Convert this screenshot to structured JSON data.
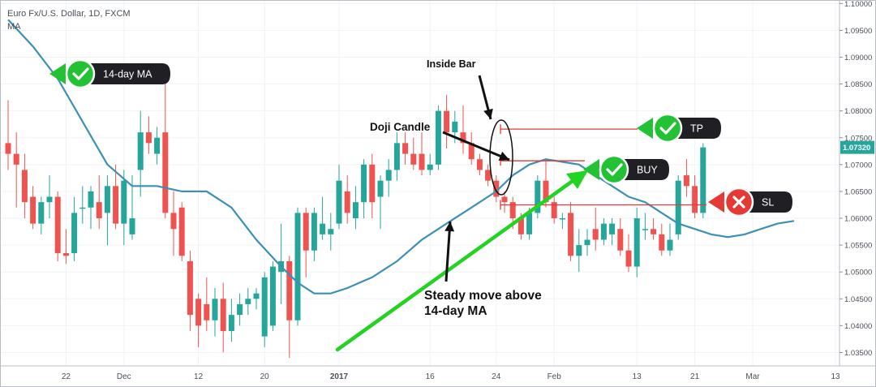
{
  "chart_data": {
    "type": "candlestick",
    "title": "Euro Fx/U.S. Dollar, 1D, FXCM",
    "indicator_label": "MA",
    "y_axis": {
      "position": "right",
      "ylim": [
        1.0325,
        1.1005
      ],
      "ticks": [
        "1.10000",
        "1.09500",
        "1.09000",
        "1.08500",
        "1.08000",
        "1.07500",
        "1.07000",
        "1.06500",
        "1.06000",
        "1.05500",
        "1.05000",
        "1.04500",
        "1.04000",
        "1.03500"
      ],
      "current_price": "1.07320"
    },
    "x_axis": {
      "tick_labels": [
        {
          "index": 7,
          "label": "22"
        },
        {
          "index": 14,
          "label": "Dec"
        },
        {
          "index": 23,
          "label": "12"
        },
        {
          "index": 31,
          "label": "20"
        },
        {
          "index": 40,
          "label": "2017",
          "bold": true
        },
        {
          "index": 51,
          "label": "16"
        },
        {
          "index": 59,
          "label": "24"
        },
        {
          "index": 66,
          "label": "Feb"
        },
        {
          "index": 76,
          "label": "13"
        },
        {
          "index": 83,
          "label": "21"
        },
        {
          "index": 90,
          "label": "Mar"
        },
        {
          "index": 100,
          "label": "13"
        }
      ]
    },
    "grid": true,
    "colors": {
      "up": "#26a69a",
      "down": "#ef5350",
      "ma": "#3d8fb5",
      "levels": "#e53935",
      "arrow": "#22d322"
    },
    "candles": [
      [
        1.074,
        1.082,
        1.069,
        1.072
      ],
      [
        1.072,
        1.076,
        1.062,
        1.07
      ],
      [
        1.069,
        1.072,
        1.06,
        1.063
      ],
      [
        1.064,
        1.066,
        1.058,
        1.059
      ],
      [
        1.059,
        1.064,
        1.057,
        1.063
      ],
      [
        1.063,
        1.068,
        1.06,
        1.064
      ],
      [
        1.064,
        1.065,
        1.052,
        1.0535
      ],
      [
        1.0535,
        1.058,
        1.0515,
        1.053
      ],
      [
        1.0535,
        1.064,
        1.052,
        1.061
      ],
      [
        1.062,
        1.066,
        1.059,
        1.062
      ],
      [
        1.062,
        1.066,
        1.058,
        1.065
      ],
      [
        1.063,
        1.068,
        1.058,
        1.06
      ],
      [
        1.061,
        1.068,
        1.055,
        1.066
      ],
      [
        1.066,
        1.07,
        1.058,
        1.059
      ],
      [
        1.059,
        1.069,
        1.055,
        1.067
      ],
      [
        1.057,
        1.068,
        1.056,
        1.06
      ],
      [
        1.069,
        1.08,
        1.064,
        1.076
      ],
      [
        1.076,
        1.079,
        1.072,
        1.074
      ],
      [
        1.072,
        1.077,
        1.07,
        1.075
      ],
      [
        1.076,
        1.088,
        1.06,
        1.061
      ],
      [
        1.061,
        1.065,
        1.053,
        1.058
      ],
      [
        1.062,
        1.063,
        1.052,
        1.053
      ],
      [
        1.052,
        1.054,
        1.039,
        1.042
      ],
      [
        1.045,
        1.046,
        1.036,
        1.04
      ],
      [
        1.044,
        1.049,
        1.039,
        1.041
      ],
      [
        1.041,
        1.047,
        1.038,
        1.045
      ],
      [
        1.045,
        1.048,
        1.035,
        1.039
      ],
      [
        1.039,
        1.045,
        1.037,
        1.042
      ],
      [
        1.042,
        1.046,
        1.04,
        1.044
      ],
      [
        1.044,
        1.047,
        1.042,
        1.045
      ],
      [
        1.045,
        1.047,
        1.043,
        1.046
      ],
      [
        1.038,
        1.05,
        1.036,
        1.049
      ],
      [
        1.04,
        1.052,
        1.039,
        1.051
      ],
      [
        1.05,
        1.059,
        1.044,
        1.052
      ],
      [
        1.052,
        1.053,
        1.034,
        1.041
      ],
      [
        1.041,
        1.062,
        1.04,
        1.061
      ],
      [
        1.061,
        1.062,
        1.049,
        1.054
      ],
      [
        1.054,
        1.062,
        1.052,
        1.061
      ],
      [
        1.057,
        1.064,
        1.056,
        1.059
      ],
      [
        1.057,
        1.061,
        1.054,
        1.058
      ],
      [
        1.059,
        1.07,
        1.058,
        1.067
      ],
      [
        1.065,
        1.068,
        1.059,
        1.061
      ],
      [
        1.06,
        1.066,
        1.058,
        1.063
      ],
      [
        1.063,
        1.071,
        1.06,
        1.07
      ],
      [
        1.07,
        1.072,
        1.06,
        1.063
      ],
      [
        1.064,
        1.068,
        1.058,
        1.067
      ],
      [
        1.067,
        1.071,
        1.064,
        1.069
      ],
      [
        1.069,
        1.076,
        1.067,
        1.074
      ],
      [
        1.074,
        1.076,
        1.07,
        1.072
      ],
      [
        1.072,
        1.075,
        1.069,
        1.07
      ],
      [
        1.072,
        1.076,
        1.068,
        1.069
      ],
      [
        1.069,
        1.072,
        1.068,
        1.07
      ],
      [
        1.07,
        1.081,
        1.069,
        1.08
      ],
      [
        1.08,
        1.083,
        1.073,
        1.076
      ],
      [
        1.076,
        1.08,
        1.074,
        1.078
      ],
      [
        1.076,
        1.081,
        1.072,
        1.074
      ],
      [
        1.074,
        1.076,
        1.07,
        1.071
      ],
      [
        1.071,
        1.072,
        1.068,
        1.069
      ],
      [
        1.069,
        1.07,
        1.066,
        1.067
      ],
      [
        1.067,
        1.068,
        1.063,
        1.064
      ],
      [
        1.064,
        1.065,
        1.061,
        1.063
      ],
      [
        1.063,
        1.064,
        1.058,
        1.06
      ],
      [
        1.06,
        1.061,
        1.056,
        1.057
      ],
      [
        1.057,
        1.062,
        1.056,
        1.061
      ],
      [
        1.061,
        1.068,
        1.06,
        1.067
      ],
      [
        1.067,
        1.071,
        1.062,
        1.063
      ],
      [
        1.063,
        1.064,
        1.059,
        1.06
      ],
      [
        1.06,
        1.061,
        1.058,
        1.06
      ],
      [
        1.061,
        1.063,
        1.052,
        1.053
      ],
      [
        1.053,
        1.058,
        1.05,
        1.055
      ],
      [
        1.055,
        1.058,
        1.053,
        1.056
      ],
      [
        1.058,
        1.062,
        1.054,
        1.056
      ],
      [
        1.056,
        1.06,
        1.055,
        1.059
      ],
      [
        1.057,
        1.06,
        1.055,
        1.059
      ],
      [
        1.058,
        1.06,
        1.053,
        1.054
      ],
      [
        1.054,
        1.057,
        1.05,
        1.051
      ],
      [
        1.051,
        1.062,
        1.049,
        1.06
      ],
      [
        1.058,
        1.061,
        1.056,
        1.058
      ],
      [
        1.058,
        1.06,
        1.056,
        1.057
      ],
      [
        1.057,
        1.059,
        1.053,
        1.054
      ],
      [
        1.054,
        1.059,
        1.053,
        1.056
      ],
      [
        1.057,
        1.068,
        1.056,
        1.067
      ],
      [
        1.068,
        1.071,
        1.064,
        1.066
      ],
      [
        1.066,
        1.068,
        1.06,
        1.061
      ],
      [
        1.061,
        1.074,
        1.06,
        1.0732
      ]
    ],
    "ma_line": [
      [
        0,
        1.097
      ],
      [
        3,
        1.092
      ],
      [
        6,
        1.086
      ],
      [
        9,
        1.078
      ],
      [
        12,
        1.07
      ],
      [
        15,
        1.066
      ],
      [
        18,
        1.066
      ],
      [
        21,
        1.065
      ],
      [
        24,
        1.065
      ],
      [
        27,
        1.062
      ],
      [
        30,
        1.056
      ],
      [
        33,
        1.051
      ],
      [
        35,
        1.048
      ],
      [
        37,
        1.046
      ],
      [
        39,
        1.046
      ],
      [
        41,
        1.047
      ],
      [
        44,
        1.049
      ],
      [
        47,
        1.052
      ],
      [
        50,
        1.056
      ],
      [
        53,
        1.059
      ],
      [
        56,
        1.062
      ],
      [
        59,
        1.065
      ],
      [
        61,
        1.068
      ],
      [
        63,
        1.07
      ],
      [
        65,
        1.071
      ],
      [
        67,
        1.0705
      ],
      [
        69,
        1.07
      ],
      [
        71,
        1.068
      ],
      [
        73,
        1.066
      ],
      [
        75,
        1.064
      ],
      [
        77,
        1.063
      ],
      [
        79,
        1.061
      ],
      [
        81,
        1.059
      ],
      [
        83,
        1.058
      ],
      [
        85,
        1.057
      ],
      [
        87,
        1.0565
      ],
      [
        89,
        1.057
      ],
      [
        91,
        1.058
      ],
      [
        93,
        1.059
      ],
      [
        95,
        1.0595
      ]
    ],
    "trade_levels": {
      "tp": {
        "price": 1.0766,
        "from_index": 60
      },
      "buy": {
        "price": 1.0707,
        "from_index": 60
      },
      "sl": {
        "price": 1.0625,
        "from_index": 60
      }
    },
    "callouts": [
      {
        "id": "ma",
        "text": "14-day MA",
        "icon": "check",
        "color": "#23c234"
      },
      {
        "id": "tp",
        "text": "TP",
        "icon": "check",
        "color": "#23c234"
      },
      {
        "id": "buy",
        "text": "BUY",
        "icon": "check",
        "color": "#23c234"
      },
      {
        "id": "sl",
        "text": "SL",
        "icon": "cross",
        "color": "#e53935"
      }
    ],
    "annotations": [
      {
        "id": "inside-bar",
        "text": [
          "Inside Bar"
        ]
      },
      {
        "id": "doji",
        "text": [
          "Doji Candle"
        ]
      },
      {
        "id": "steady",
        "text": [
          "Steady move above",
          "14-day MA"
        ]
      }
    ]
  }
}
